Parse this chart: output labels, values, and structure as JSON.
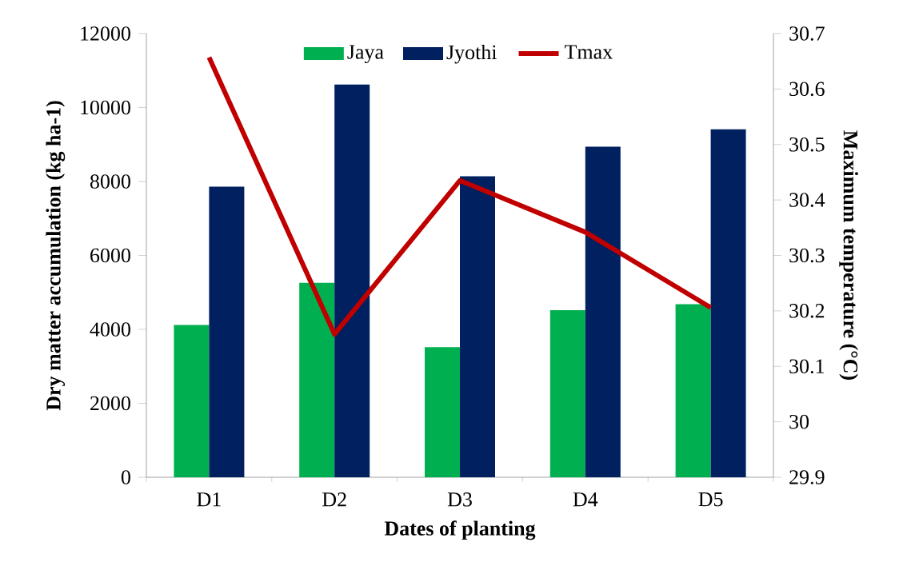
{
  "chart_data": {
    "type": "bar",
    "xlabel": "Dates of planting",
    "ylabel": "Dry matter accumulation (kg ha-1)",
    "y2label": "Maximum temperature (°C)",
    "categories": [
      "D1",
      "D2",
      "D3",
      "D4",
      "D5"
    ],
    "series": [
      {
        "name": "Jaya",
        "color": "#00b050",
        "values": [
          4120,
          5260,
          3520,
          4520,
          4680
        ]
      },
      {
        "name": "Jyothi",
        "color": "#002060",
        "values": [
          7860,
          10620,
          8140,
          8940,
          9410
        ]
      },
      {
        "name": "Tmax",
        "type": "line",
        "axis": "y2",
        "color": "#c00000",
        "values": [
          30.657,
          30.158,
          30.435,
          30.342,
          30.206
        ]
      }
    ],
    "ylim": [
      0,
      12000
    ],
    "yticks": [
      0,
      2000,
      4000,
      6000,
      8000,
      10000,
      12000
    ],
    "y2lim": [
      29.9,
      30.7
    ],
    "y2ticks": [
      29.9,
      30,
      30.1,
      30.2,
      30.3,
      30.4,
      30.5,
      30.6,
      30.7
    ],
    "legend": "top"
  }
}
